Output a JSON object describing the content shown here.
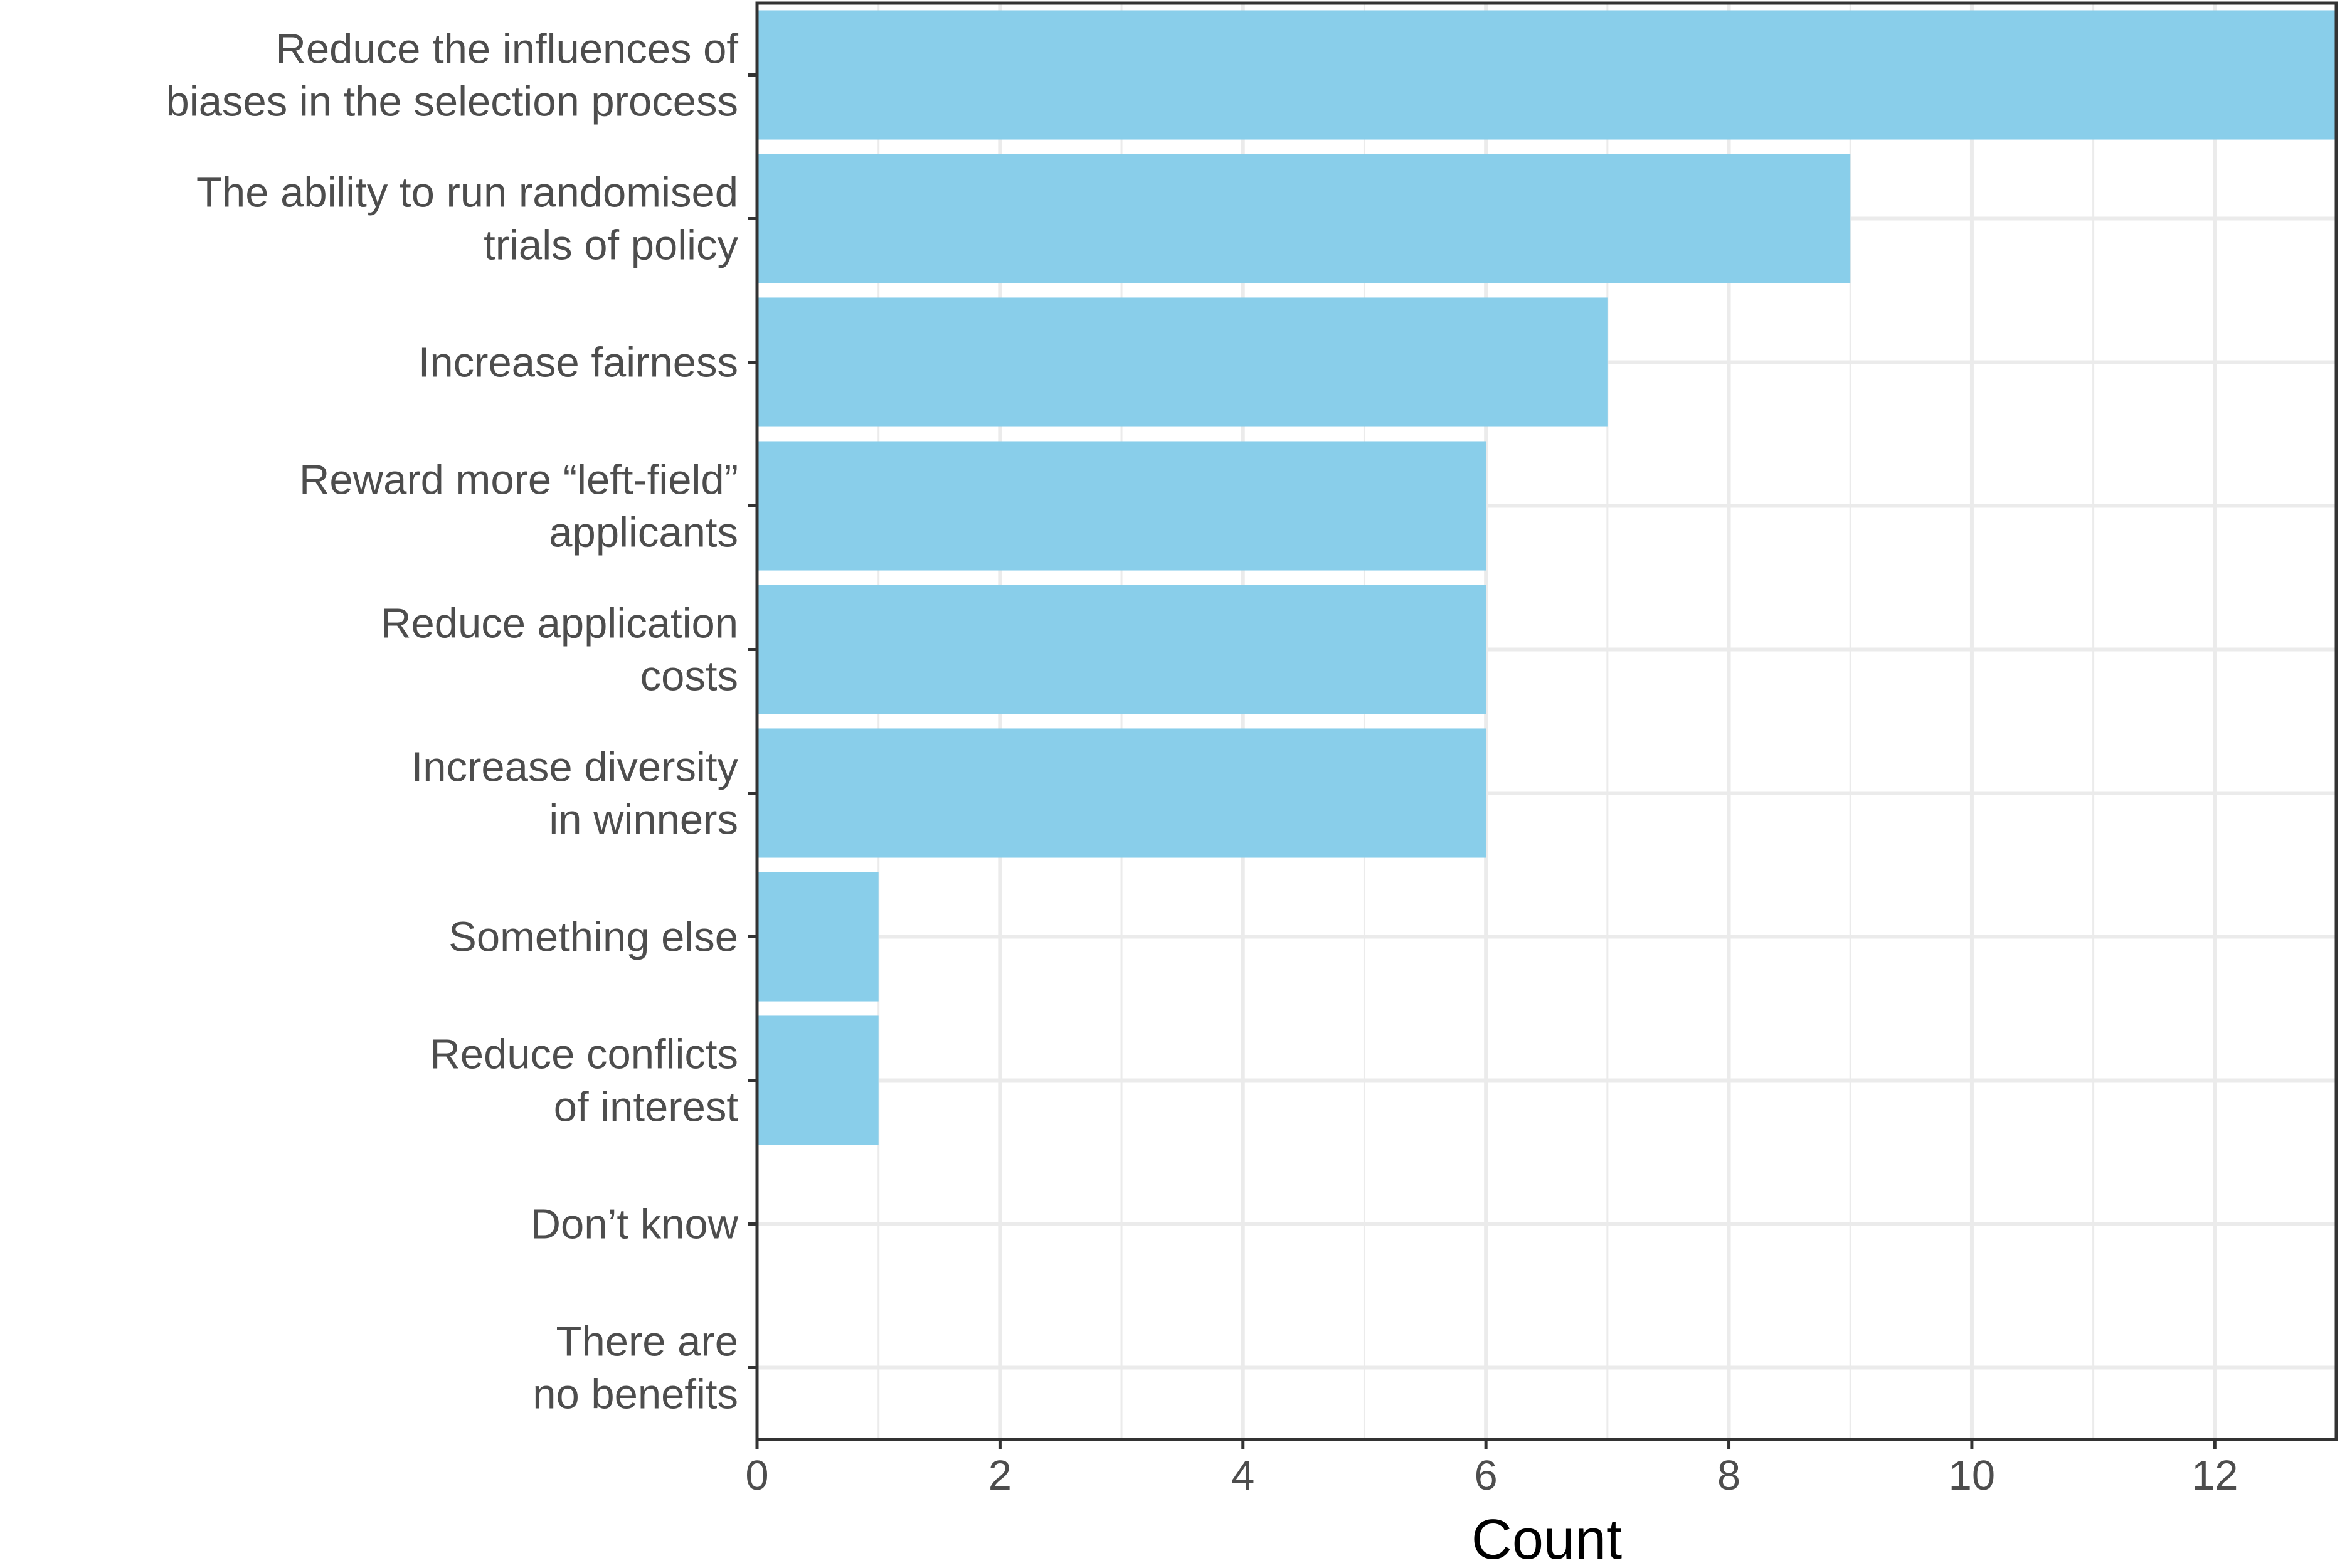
{
  "chart_data": {
    "type": "bar",
    "orientation": "horizontal",
    "categories": [
      [
        "Reduce the influences of",
        "biases in the selection process"
      ],
      [
        "The ability to run randomised",
        "trials of policy"
      ],
      [
        "Increase fairness"
      ],
      [
        "Reward more “left-field”",
        "applicants"
      ],
      [
        "Reduce application",
        "costs"
      ],
      [
        "Increase diversity",
        "in winners"
      ],
      [
        "Something else"
      ],
      [
        "Reduce conflicts",
        "of interest"
      ],
      [
        "Don’t know"
      ],
      [
        "There are",
        "no benefits"
      ]
    ],
    "values": [
      13,
      9,
      7,
      6,
      6,
      6,
      1,
      1,
      0,
      0
    ],
    "xlabel": "Count",
    "ylabel": "",
    "xlim": [
      0,
      13
    ],
    "xticks": [
      0,
      2,
      4,
      6,
      8,
      10,
      12
    ],
    "grid": true,
    "bar_color": "#89CEEA",
    "grid_color": "#EBEBEB",
    "axis_color": "#333333",
    "text_color": "#4D4D4D"
  }
}
